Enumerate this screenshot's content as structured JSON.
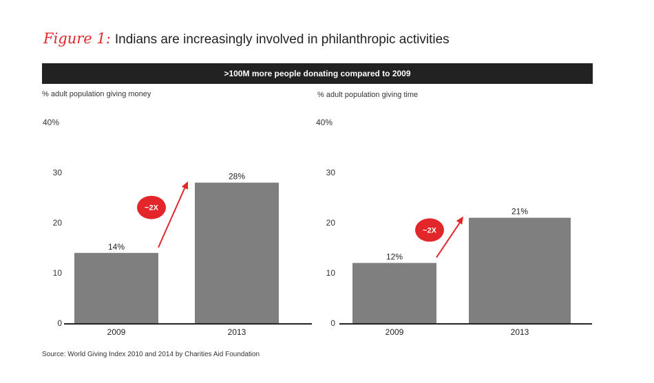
{
  "header": {
    "figure_label": "Figure 1:",
    "title": "Indians are increasingly involved in philanthropic activities",
    "banner": ">100M more people donating compared to 2009"
  },
  "source": "Source: World Giving Index 2010 and 2014 by Charities Aid Foundation",
  "colors": {
    "bar": "#7f7f80",
    "accent": "#e3262a",
    "banner": "#222222"
  },
  "chart_data": [
    {
      "type": "bar",
      "title": "% adult population giving money",
      "categories": [
        "2009",
        "2013"
      ],
      "values": [
        14,
        28
      ],
      "value_labels": [
        "14%",
        "28%"
      ],
      "yticks": [
        "0",
        "10",
        "20",
        "30",
        "40%"
      ],
      "ylim": [
        0,
        40
      ],
      "annotation": "~2X"
    },
    {
      "type": "bar",
      "title": "% adult population giving time",
      "categories": [
        "2009",
        "2013"
      ],
      "values": [
        12,
        21
      ],
      "value_labels": [
        "12%",
        "21%"
      ],
      "yticks": [
        "0",
        "10",
        "20",
        "30",
        "40%"
      ],
      "ylim": [
        0,
        40
      ],
      "annotation": "~2X"
    }
  ]
}
